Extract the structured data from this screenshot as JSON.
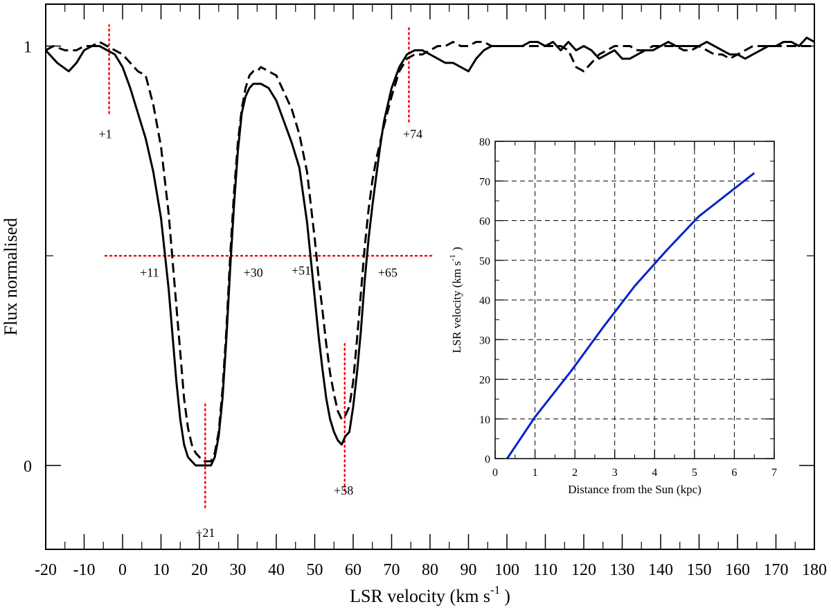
{
  "chart_data": [
    {
      "type": "line",
      "xlabel": "LSR velocity (km s",
      "xlabel_sup": "-1",
      "xlabel_tail": ")",
      "ylabel": "Flux normalised",
      "xlim": [
        -20,
        180
      ],
      "ylim": [
        -0.2,
        1.1
      ],
      "x_ticks": [
        -20,
        -10,
        0,
        10,
        20,
        30,
        40,
        50,
        60,
        70,
        80,
        90,
        100,
        110,
        120,
        130,
        140,
        150,
        160,
        170,
        180
      ],
      "y_ticks": [
        0,
        1
      ],
      "grid": false,
      "series": [
        {
          "style": "solid",
          "color": "#000000",
          "x": [
            -20,
            -17,
            -14,
            -12,
            -10,
            -8,
            -6,
            -4,
            -2,
            0,
            2,
            4,
            6,
            8,
            10,
            12,
            14,
            15,
            16,
            17,
            18,
            19,
            20,
            21,
            22,
            23,
            24,
            25,
            26,
            27,
            28,
            29,
            30,
            31,
            32,
            33,
            34,
            35,
            36,
            38,
            40,
            42,
            44,
            46,
            48,
            50,
            51,
            52,
            53,
            54,
            55,
            56,
            57,
            58,
            59,
            60,
            61,
            62,
            63,
            64,
            65,
            66,
            67,
            68,
            70,
            72,
            74,
            76,
            78,
            80,
            82,
            84,
            86,
            88,
            90,
            92,
            94,
            96,
            98,
            100,
            102,
            104,
            106,
            108,
            110,
            112,
            114,
            116,
            118,
            120,
            122,
            124,
            126,
            128,
            130,
            132,
            134,
            136,
            138,
            140,
            142,
            144,
            146,
            148,
            150,
            152,
            154,
            156,
            158,
            160,
            162,
            164,
            166,
            168,
            170,
            172,
            174,
            176,
            178,
            180
          ],
          "y": [
            0.99,
            0.96,
            0.94,
            0.96,
            0.99,
            1.0,
            1.0,
            0.99,
            0.98,
            0.95,
            0.9,
            0.84,
            0.78,
            0.7,
            0.59,
            0.42,
            0.2,
            0.11,
            0.05,
            0.02,
            0.01,
            0.0,
            0.0,
            0.0,
            0.0,
            0.0,
            0.02,
            0.07,
            0.16,
            0.3,
            0.47,
            0.62,
            0.75,
            0.84,
            0.88,
            0.9,
            0.91,
            0.91,
            0.91,
            0.9,
            0.87,
            0.82,
            0.77,
            0.71,
            0.58,
            0.4,
            0.31,
            0.23,
            0.16,
            0.11,
            0.08,
            0.06,
            0.05,
            0.07,
            0.08,
            0.14,
            0.22,
            0.32,
            0.44,
            0.54,
            0.62,
            0.69,
            0.76,
            0.82,
            0.9,
            0.95,
            0.98,
            0.99,
            0.99,
            0.98,
            0.97,
            0.96,
            0.96,
            0.95,
            0.94,
            0.97,
            0.99,
            1.0,
            1.0,
            1.0,
            1.0,
            1.0,
            1.01,
            1.01,
            1.0,
            1.01,
            0.99,
            1.01,
            0.99,
            1.0,
            0.99,
            0.97,
            0.98,
            0.99,
            0.97,
            0.97,
            0.98,
            0.99,
            0.99,
            1.0,
            1.01,
            1.0,
            1.0,
            1.0,
            1.0,
            1.01,
            1.0,
            0.99,
            0.98,
            0.98,
            0.97,
            0.98,
            0.99,
            1.0,
            1.0,
            1.01,
            1.01,
            1.0,
            1.02,
            1.01
          ]
        },
        {
          "style": "dashed",
          "color": "#000000",
          "x": [
            -20,
            -18,
            -15,
            -12,
            -10,
            -8,
            -6,
            -4,
            -2,
            0,
            2,
            4,
            6,
            8,
            10,
            12,
            14,
            15,
            16,
            17,
            18,
            19,
            20,
            21,
            22,
            23,
            24,
            25,
            26,
            27,
            28,
            29,
            30,
            31,
            32,
            33,
            34,
            35,
            36,
            38,
            40,
            42,
            44,
            46,
            48,
            50,
            51,
            52,
            53,
            54,
            55,
            56,
            57,
            58,
            59,
            60,
            61,
            62,
            63,
            64,
            65,
            66,
            67,
            68,
            70,
            72,
            74,
            76,
            78,
            80,
            82,
            84,
            86,
            88,
            90,
            92,
            94,
            96,
            98,
            100,
            102,
            104,
            106,
            108,
            110,
            112,
            114,
            116,
            118,
            120,
            122,
            124,
            126,
            128,
            130,
            132,
            134,
            136,
            138,
            140,
            142,
            144,
            146,
            148,
            150,
            152,
            154,
            156,
            158,
            160,
            162,
            164,
            166,
            168,
            170,
            172,
            174,
            176,
            178,
            180
          ],
          "y": [
            0.99,
            1.0,
            0.99,
            0.99,
            1.0,
            1.0,
            1.01,
            1.0,
            0.99,
            0.98,
            0.96,
            0.94,
            0.93,
            0.86,
            0.76,
            0.6,
            0.38,
            0.27,
            0.16,
            0.09,
            0.05,
            0.03,
            0.02,
            0.01,
            0.01,
            0.01,
            0.03,
            0.08,
            0.18,
            0.32,
            0.5,
            0.65,
            0.77,
            0.85,
            0.9,
            0.93,
            0.94,
            0.94,
            0.95,
            0.94,
            0.93,
            0.89,
            0.85,
            0.79,
            0.7,
            0.54,
            0.45,
            0.37,
            0.29,
            0.22,
            0.17,
            0.13,
            0.11,
            0.12,
            0.14,
            0.2,
            0.3,
            0.41,
            0.52,
            0.61,
            0.68,
            0.73,
            0.77,
            0.81,
            0.88,
            0.94,
            0.97,
            0.98,
            0.98,
            0.99,
            1.0,
            1.0,
            1.01,
            1.0,
            1.0,
            1.01,
            1.01,
            1.0,
            1.0,
            1.0,
            1.0,
            1.0,
            1.0,
            1.0,
            1.0,
            1.0,
            1.0,
            0.99,
            0.95,
            0.94,
            0.96,
            0.98,
            0.99,
            1.0,
            1.0,
            1.0,
            0.99,
            0.99,
            1.0,
            1.0,
            1.0,
            1.0,
            0.99,
            0.99,
            1.0,
            0.99,
            0.98,
            0.98,
            0.97,
            0.98,
            0.99,
            1.0,
            1.0,
            1.0,
            1.0,
            1.0,
            1.0,
            1.0,
            1.0,
            1.0
          ]
        }
      ],
      "annotations": {
        "color": "#ff0000",
        "vertical_markers": [
          {
            "label": "+1",
            "x": -3.5,
            "y_from": 0.84,
            "y_to": 1.05,
            "label_x": -4.5,
            "label_y": 0.79
          },
          {
            "label": "+74",
            "x": 74.5,
            "y_from": 0.82,
            "y_to": 1.05,
            "label_x": 75.5,
            "label_y": 0.79
          },
          {
            "label": "+21",
            "x": 21.5,
            "y_from": -0.1,
            "y_to": 0.15,
            "label_x": 21.5,
            "label_y": -0.16
          },
          {
            "label": "+58",
            "x": 57.8,
            "y_from": -0.06,
            "y_to": 0.29,
            "label_x": 57.5,
            "label_y": -0.06
          }
        ],
        "horizontal_marker": {
          "y": 0.5,
          "x_from": -4.5,
          "x_to": 80.5
        },
        "half_max_labels": [
          {
            "label": "+11",
            "x": 7,
            "y": 0.46
          },
          {
            "label": "+30",
            "x": 34,
            "y": 0.46
          },
          {
            "label": "+51",
            "x": 46.5,
            "y": 0.465
          },
          {
            "label": "+65",
            "x": 69,
            "y": 0.46
          }
        ]
      }
    },
    {
      "type": "line",
      "xlabel": "Distance from the Sun (kpc)",
      "ylabel": "LSR velocity (km s",
      "ylabel_sup": "-1",
      "ylabel_tail": ")",
      "xlim": [
        0,
        7
      ],
      "ylim": [
        0,
        80
      ],
      "x_ticks": [
        0,
        1,
        2,
        3,
        4,
        5,
        6,
        7
      ],
      "y_ticks": [
        0,
        10,
        20,
        30,
        40,
        50,
        60,
        70,
        80
      ],
      "grid": true,
      "series": [
        {
          "color": "#0022cc",
          "x": [
            0.3,
            1.0,
            1.9,
            2.7,
            3.5,
            4.3,
            5.1,
            6.5
          ],
          "y": [
            0,
            10.5,
            22,
            33,
            43.5,
            52.5,
            61,
            72
          ]
        }
      ]
    }
  ]
}
